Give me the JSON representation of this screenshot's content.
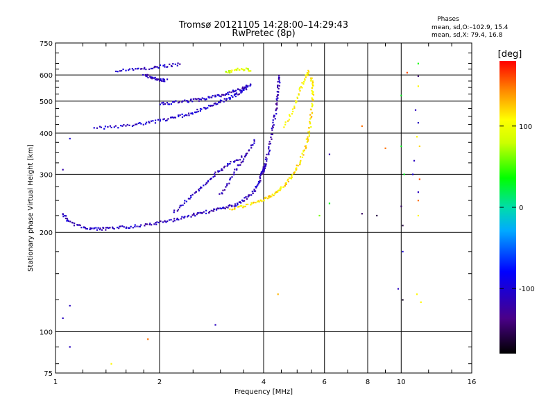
{
  "chart_data": {
    "type": "scatter",
    "title": "Tromsø 20121105 14:28:00–14:29:43",
    "subtitle": "RwPretec (8p)",
    "xlabel": "Frequency [MHz]",
    "ylabel": "Stationary phase Virtual Height [km]",
    "x_scale": "log",
    "y_scale": "log",
    "xlim": [
      1,
      16
    ],
    "ylim": [
      75,
      750
    ],
    "x_ticks": [
      1,
      2,
      4,
      6,
      8,
      10,
      16
    ],
    "y_ticks": [
      75,
      100,
      200,
      300,
      400,
      500,
      600,
      750
    ],
    "grid": true,
    "stats": {
      "heading": "Phases",
      "line1": "mean, sd,O:–102.9, 15.4",
      "line2": "mean, sd,X:  79.4, 16.8"
    },
    "colorbar": {
      "label": "[deg]",
      "ticks": [
        100,
        0,
        -100
      ],
      "range": [
        -180,
        180
      ]
    },
    "traces": [
      {
        "phase": -110,
        "points": [
          [
            1.05,
            228
          ],
          [
            1.1,
            215
          ],
          [
            1.2,
            207
          ],
          [
            1.3,
            205
          ],
          [
            1.4,
            205
          ],
          [
            1.55,
            207
          ],
          [
            1.7,
            209
          ],
          [
            1.9,
            212
          ],
          [
            2.1,
            216
          ],
          [
            2.3,
            221
          ],
          [
            2.5,
            226
          ],
          [
            2.7,
            230
          ],
          [
            2.9,
            234
          ],
          [
            3.1,
            238
          ],
          [
            3.3,
            242
          ],
          [
            3.5,
            250
          ],
          [
            3.7,
            262
          ],
          [
            3.85,
            280
          ],
          [
            3.95,
            300
          ],
          [
            4.05,
            322
          ]
        ]
      },
      {
        "phase": 115,
        "points": [
          [
            3.2,
            236
          ],
          [
            3.5,
            240
          ],
          [
            3.8,
            246
          ],
          [
            4.0,
            252
          ],
          [
            4.2,
            258
          ],
          [
            4.4,
            266
          ],
          [
            4.6,
            278
          ],
          [
            4.8,
            294
          ],
          [
            5.0,
            315
          ],
          [
            5.2,
            345
          ],
          [
            5.35,
            380
          ],
          [
            5.45,
            420
          ],
          [
            5.5,
            470
          ],
          [
            5.55,
            520
          ],
          [
            5.55,
            560
          ],
          [
            5.5,
            590
          ]
        ]
      },
      {
        "phase": -115,
        "points": [
          [
            3.95,
            300
          ],
          [
            4.05,
            325
          ],
          [
            4.15,
            360
          ],
          [
            4.25,
            410
          ],
          [
            4.32,
            460
          ],
          [
            4.38,
            510
          ],
          [
            4.42,
            560
          ],
          [
            4.45,
            600
          ]
        ]
      },
      {
        "phase": -105,
        "points": [
          [
            1.3,
            415
          ],
          [
            1.5,
            418
          ],
          [
            1.7,
            425
          ],
          [
            1.9,
            432
          ],
          [
            2.1,
            440
          ],
          [
            2.3,
            450
          ],
          [
            2.5,
            462
          ],
          [
            2.7,
            475
          ],
          [
            2.9,
            490
          ],
          [
            3.1,
            505
          ],
          [
            3.3,
            520
          ],
          [
            3.5,
            540
          ],
          [
            3.7,
            560
          ]
        ]
      },
      {
        "phase": -110,
        "points": [
          [
            2.0,
            490
          ],
          [
            2.2,
            495
          ],
          [
            2.4,
            500
          ],
          [
            2.6,
            505
          ],
          [
            2.8,
            512
          ],
          [
            3.0,
            520
          ],
          [
            3.2,
            530
          ],
          [
            3.4,
            540
          ],
          [
            3.6,
            555
          ]
        ]
      },
      {
        "phase": -108,
        "points": [
          [
            1.5,
            620
          ],
          [
            1.7,
            625
          ],
          [
            1.9,
            632
          ],
          [
            2.1,
            640
          ],
          [
            2.3,
            648
          ]
        ]
      },
      {
        "phase": -112,
        "points": [
          [
            1.8,
            600
          ],
          [
            1.9,
            590
          ],
          [
            2.0,
            582
          ],
          [
            2.1,
            578
          ]
        ]
      },
      {
        "phase": -110,
        "points": [
          [
            2.2,
            230
          ],
          [
            2.4,
            250
          ],
          [
            2.6,
            270
          ],
          [
            2.8,
            290
          ],
          [
            3.0,
            310
          ],
          [
            3.2,
            325
          ],
          [
            3.5,
            340
          ]
        ]
      },
      {
        "phase": -115,
        "points": [
          [
            3.0,
            260
          ],
          [
            3.2,
            290
          ],
          [
            3.4,
            320
          ],
          [
            3.6,
            350
          ],
          [
            3.8,
            385
          ]
        ]
      },
      {
        "phase": 90,
        "points": [
          [
            3.1,
            610
          ],
          [
            3.3,
            620
          ],
          [
            3.5,
            625
          ],
          [
            3.7,
            620
          ]
        ]
      },
      {
        "phase": 110,
        "points": [
          [
            4.6,
            420
          ],
          [
            4.9,
            480
          ],
          [
            5.1,
            540
          ],
          [
            5.3,
            590
          ],
          [
            5.4,
            620
          ]
        ]
      }
    ],
    "scatter_points": [
      [
        1.05,
        110,
        -110
      ],
      [
        1.1,
        120,
        -110
      ],
      [
        1.1,
        90,
        -110
      ],
      [
        1.1,
        385,
        -100
      ],
      [
        1.05,
        310,
        -120
      ],
      [
        1.45,
        80,
        110
      ],
      [
        1.85,
        95,
        150
      ],
      [
        2.9,
        105,
        -110
      ],
      [
        4.4,
        130,
        130
      ],
      [
        5.8,
        225,
        60
      ],
      [
        6.2,
        245,
        30
      ],
      [
        6.2,
        345,
        -120
      ],
      [
        7.7,
        228,
        -150
      ],
      [
        7.7,
        420,
        150
      ],
      [
        8.5,
        225,
        -160
      ],
      [
        9.0,
        360,
        150
      ],
      [
        9.8,
        135,
        -110
      ],
      [
        10.1,
        125,
        -170
      ],
      [
        10.1,
        175,
        -100
      ],
      [
        10.1,
        210,
        -160
      ],
      [
        10.0,
        240,
        -150
      ],
      [
        10.2,
        300,
        30
      ],
      [
        10.0,
        365,
        30
      ],
      [
        10.0,
        520,
        30
      ],
      [
        10.4,
        610,
        160
      ],
      [
        10.8,
        300,
        -100
      ],
      [
        10.9,
        330,
        -110
      ],
      [
        11.1,
        390,
        110
      ],
      [
        11.2,
        430,
        -110
      ],
      [
        11.3,
        290,
        160
      ],
      [
        11.2,
        250,
        150
      ],
      [
        11.2,
        265,
        -110
      ],
      [
        11.2,
        225,
        110
      ],
      [
        11.1,
        130,
        110
      ],
      [
        11.4,
        123,
        110
      ],
      [
        11.2,
        595,
        -140
      ],
      [
        11.2,
        650,
        40
      ],
      [
        11.0,
        470,
        -110
      ],
      [
        11.3,
        365,
        120
      ],
      [
        11.2,
        555,
        110
      ]
    ]
  }
}
